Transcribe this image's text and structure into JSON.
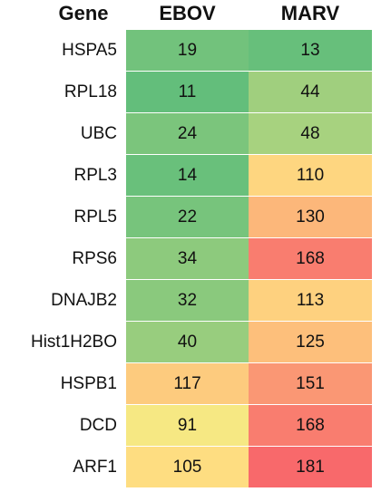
{
  "header": {
    "gene": "Gene",
    "ebov": "EBOV",
    "marv": "MARV"
  },
  "chart_data": {
    "type": "heatmap",
    "columns": [
      "EBOV",
      "MARV"
    ],
    "rows": [
      {
        "gene": "HSPA5",
        "values": [
          19,
          13
        ]
      },
      {
        "gene": "RPL18",
        "values": [
          11,
          44
        ]
      },
      {
        "gene": "UBC",
        "values": [
          24,
          48
        ]
      },
      {
        "gene": "RPL3",
        "values": [
          14,
          110
        ]
      },
      {
        "gene": "RPL5",
        "values": [
          22,
          130
        ]
      },
      {
        "gene": "RPS6",
        "values": [
          34,
          168
        ]
      },
      {
        "gene": "DNAJB2",
        "values": [
          32,
          113
        ]
      },
      {
        "gene": "Hist1H2BO",
        "values": [
          40,
          125
        ]
      },
      {
        "gene": "HSPB1",
        "values": [
          117,
          151
        ]
      },
      {
        "gene": "DCD",
        "values": [
          91,
          168
        ]
      },
      {
        "gene": "ARF1",
        "values": [
          105,
          181
        ]
      }
    ],
    "color_scale": {
      "low": "#63be7b",
      "mid": "#ffeb84",
      "high": "#f8696b"
    }
  }
}
